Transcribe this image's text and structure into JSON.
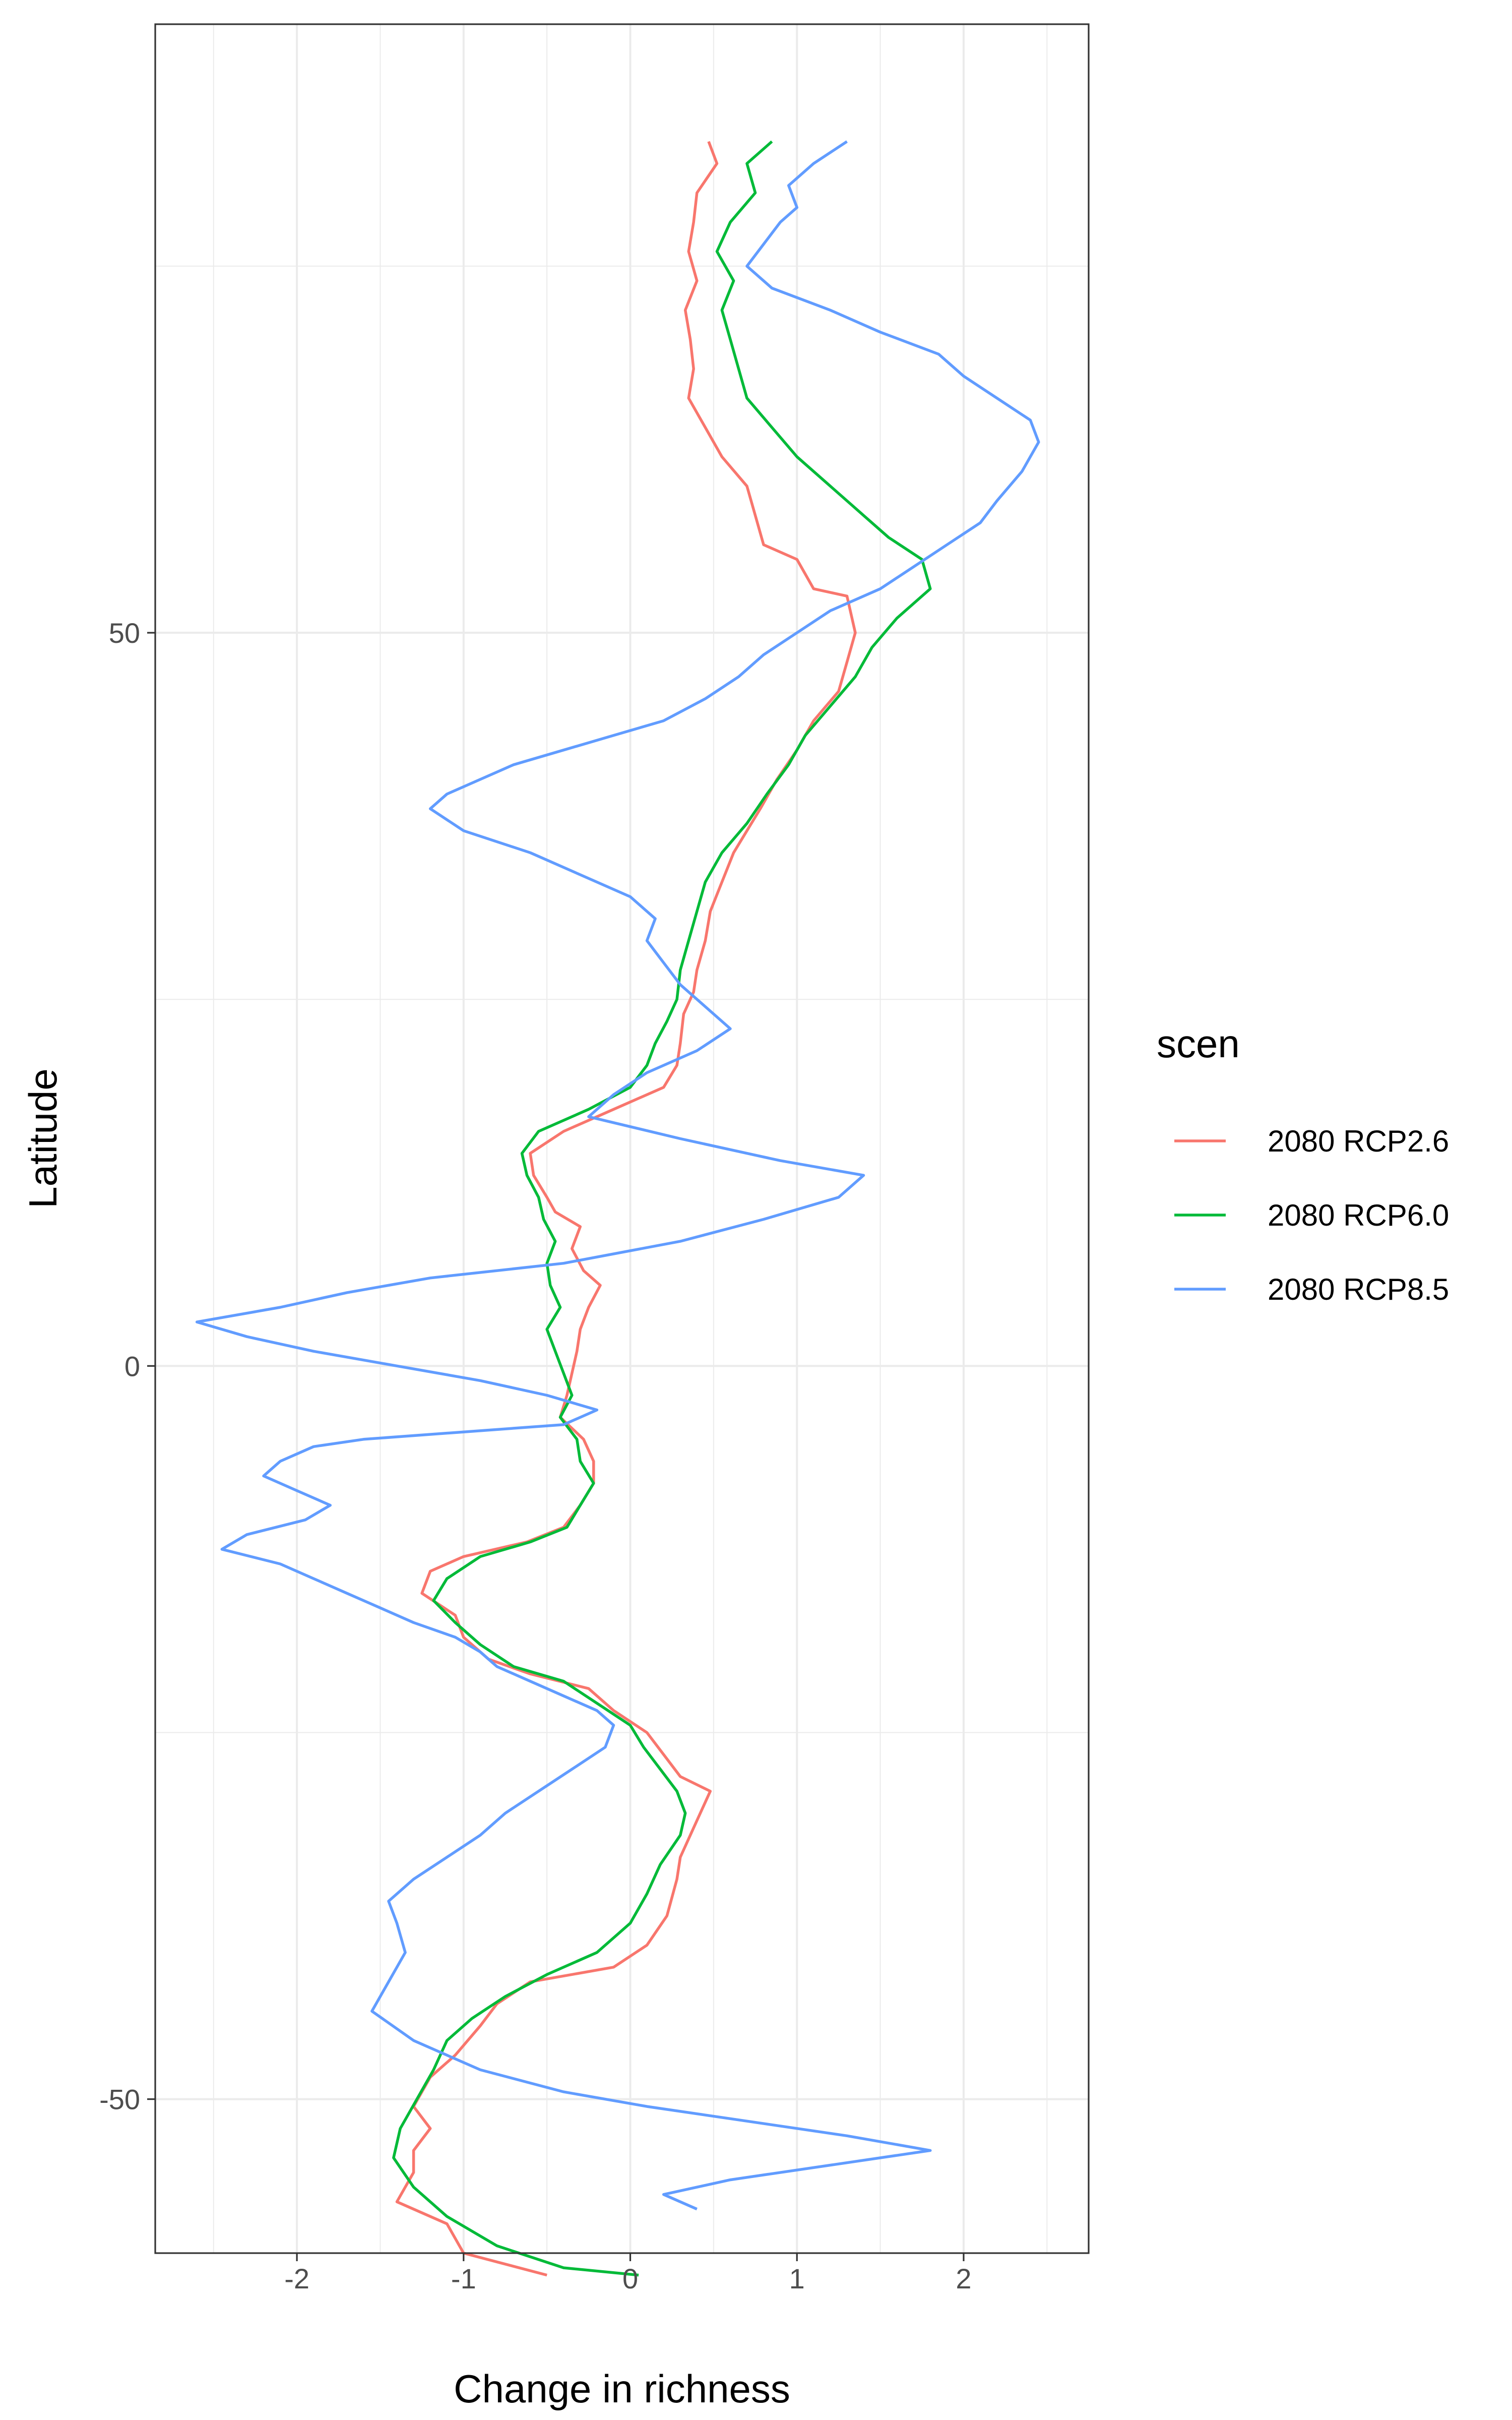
{
  "chart_data": {
    "type": "line",
    "title": "",
    "xlabel": "Change in richness",
    "ylabel": "Latitude",
    "xlim": [
      -2.85,
      2.75
    ],
    "ylim": [
      -60.5,
      91.5
    ],
    "x_ticks": [
      -2,
      -1,
      0,
      1,
      2
    ],
    "x_tick_labels": [
      "-2",
      "-1",
      "0",
      "1",
      "2"
    ],
    "y_ticks": [
      -50,
      0,
      50
    ],
    "y_tick_labels": [
      "-50",
      "0",
      "50"
    ],
    "grid": true,
    "legend": {
      "title": "scen",
      "position": "right"
    },
    "series": [
      {
        "name": "2080 RCP2.6",
        "color": "#F8766D",
        "points": [
          [
            0.47,
            83.5
          ],
          [
            0.52,
            82.0
          ],
          [
            0.4,
            80.0
          ],
          [
            0.38,
            78.0
          ],
          [
            0.35,
            76.0
          ],
          [
            0.4,
            74.0
          ],
          [
            0.33,
            72.0
          ],
          [
            0.36,
            70.0
          ],
          [
            0.38,
            68.0
          ],
          [
            0.35,
            66.0
          ],
          [
            0.45,
            64.0
          ],
          [
            0.55,
            62.0
          ],
          [
            0.7,
            60.0
          ],
          [
            0.75,
            58.0
          ],
          [
            0.8,
            56.0
          ],
          [
            1.0,
            55.0
          ],
          [
            1.1,
            53.0
          ],
          [
            1.3,
            52.5
          ],
          [
            1.35,
            50.0
          ],
          [
            1.3,
            48.0
          ],
          [
            1.25,
            46.0
          ],
          [
            1.1,
            44.0
          ],
          [
            1.0,
            42.0
          ],
          [
            0.88,
            40.0
          ],
          [
            0.78,
            38.0
          ],
          [
            0.62,
            35.0
          ],
          [
            0.55,
            33.0
          ],
          [
            0.48,
            31.0
          ],
          [
            0.45,
            29.0
          ],
          [
            0.4,
            27.0
          ],
          [
            0.38,
            25.5
          ],
          [
            0.32,
            24.0
          ],
          [
            0.3,
            22.0
          ],
          [
            0.28,
            20.5
          ],
          [
            0.2,
            19.0
          ],
          [
            -0.1,
            17.5
          ],
          [
            -0.4,
            16.0
          ],
          [
            -0.6,
            14.5
          ],
          [
            -0.58,
            13.0
          ],
          [
            -0.5,
            11.5
          ],
          [
            -0.45,
            10.5
          ],
          [
            -0.3,
            9.5
          ],
          [
            -0.35,
            8.0
          ],
          [
            -0.28,
            6.5
          ],
          [
            -0.18,
            5.5
          ],
          [
            -0.25,
            4.0
          ],
          [
            -0.3,
            2.5
          ],
          [
            -0.32,
            1.0
          ],
          [
            -0.35,
            -0.5
          ],
          [
            -0.38,
            -2.0
          ],
          [
            -0.42,
            -3.5
          ],
          [
            -0.28,
            -5.0
          ],
          [
            -0.22,
            -6.5
          ],
          [
            -0.22,
            -8.0
          ],
          [
            -0.3,
            -9.5
          ],
          [
            -0.4,
            -11.0
          ],
          [
            -0.62,
            -12.0
          ],
          [
            -1.0,
            -13.0
          ],
          [
            -1.2,
            -14.0
          ],
          [
            -1.25,
            -15.5
          ],
          [
            -1.05,
            -17.0
          ],
          [
            -1.0,
            -18.5
          ],
          [
            -0.85,
            -20.0
          ],
          [
            -0.6,
            -21.0
          ],
          [
            -0.25,
            -22.0
          ],
          [
            -0.1,
            -23.5
          ],
          [
            0.1,
            -25.0
          ],
          [
            0.2,
            -26.5
          ],
          [
            0.3,
            -28.0
          ],
          [
            0.48,
            -29.0
          ],
          [
            0.4,
            -31.0
          ],
          [
            0.3,
            -33.5
          ],
          [
            0.28,
            -35.0
          ],
          [
            0.22,
            -37.5
          ],
          [
            0.1,
            -39.5
          ],
          [
            -0.1,
            -41.0
          ],
          [
            -0.6,
            -42.0
          ],
          [
            -0.8,
            -43.5
          ],
          [
            -0.9,
            -45.0
          ],
          [
            -1.05,
            -47.0
          ],
          [
            -1.2,
            -48.5
          ],
          [
            -1.3,
            -50.5
          ],
          [
            -1.2,
            -52.0
          ],
          [
            -1.3,
            -53.5
          ],
          [
            -1.3,
            -55.0
          ],
          [
            -1.4,
            -57.0
          ],
          [
            -1.1,
            -58.5
          ],
          [
            -1.0,
            -60.5
          ],
          [
            -0.5,
            -62.0
          ]
        ]
      },
      {
        "name": "2080 RCP6.0",
        "color": "#00BA38",
        "points": [
          [
            0.85,
            83.5
          ],
          [
            0.7,
            82.0
          ],
          [
            0.75,
            80.0
          ],
          [
            0.6,
            78.0
          ],
          [
            0.52,
            76.0
          ],
          [
            0.62,
            74.0
          ],
          [
            0.55,
            72.0
          ],
          [
            0.6,
            70.0
          ],
          [
            0.65,
            68.0
          ],
          [
            0.7,
            66.0
          ],
          [
            0.85,
            64.0
          ],
          [
            1.0,
            62.0
          ],
          [
            1.2,
            60.0
          ],
          [
            1.4,
            58.0
          ],
          [
            1.55,
            56.5
          ],
          [
            1.75,
            55.0
          ],
          [
            1.8,
            53.0
          ],
          [
            1.6,
            51.0
          ],
          [
            1.45,
            49.0
          ],
          [
            1.35,
            47.0
          ],
          [
            1.2,
            45.0
          ],
          [
            1.05,
            43.0
          ],
          [
            0.95,
            41.0
          ],
          [
            0.82,
            39.0
          ],
          [
            0.7,
            37.0
          ],
          [
            0.55,
            35.0
          ],
          [
            0.45,
            33.0
          ],
          [
            0.4,
            31.0
          ],
          [
            0.35,
            29.0
          ],
          [
            0.3,
            27.0
          ],
          [
            0.28,
            25.0
          ],
          [
            0.22,
            23.5
          ],
          [
            0.15,
            22.0
          ],
          [
            0.1,
            20.5
          ],
          [
            0.0,
            19.0
          ],
          [
            -0.25,
            17.5
          ],
          [
            -0.55,
            16.0
          ],
          [
            -0.65,
            14.5
          ],
          [
            -0.62,
            13.0
          ],
          [
            -0.55,
            11.5
          ],
          [
            -0.52,
            10.0
          ],
          [
            -0.45,
            8.5
          ],
          [
            -0.5,
            7.0
          ],
          [
            -0.48,
            5.5
          ],
          [
            -0.42,
            4.0
          ],
          [
            -0.5,
            2.5
          ],
          [
            -0.45,
            1.0
          ],
          [
            -0.4,
            -0.5
          ],
          [
            -0.35,
            -2.0
          ],
          [
            -0.42,
            -3.5
          ],
          [
            -0.32,
            -5.0
          ],
          [
            -0.3,
            -6.5
          ],
          [
            -0.22,
            -8.0
          ],
          [
            -0.3,
            -9.5
          ],
          [
            -0.38,
            -11.0
          ],
          [
            -0.6,
            -12.0
          ],
          [
            -0.9,
            -13.0
          ],
          [
            -1.1,
            -14.5
          ],
          [
            -1.18,
            -16.0
          ],
          [
            -1.05,
            -17.5
          ],
          [
            -0.9,
            -19.0
          ],
          [
            -0.7,
            -20.5
          ],
          [
            -0.4,
            -21.5
          ],
          [
            -0.2,
            -23.0
          ],
          [
            0.0,
            -24.5
          ],
          [
            0.08,
            -26.0
          ],
          [
            0.18,
            -27.5
          ],
          [
            0.28,
            -29.0
          ],
          [
            0.33,
            -30.5
          ],
          [
            0.3,
            -32.0
          ],
          [
            0.18,
            -34.0
          ],
          [
            0.1,
            -36.0
          ],
          [
            0.0,
            -38.0
          ],
          [
            -0.2,
            -40.0
          ],
          [
            -0.5,
            -41.5
          ],
          [
            -0.75,
            -43.0
          ],
          [
            -0.95,
            -44.5
          ],
          [
            -1.1,
            -46.0
          ],
          [
            -1.18,
            -48.0
          ],
          [
            -1.28,
            -50.0
          ],
          [
            -1.38,
            -52.0
          ],
          [
            -1.42,
            -54.0
          ],
          [
            -1.3,
            -56.0
          ],
          [
            -1.1,
            -58.0
          ],
          [
            -0.8,
            -60.0
          ],
          [
            -0.4,
            -61.5
          ],
          [
            0.05,
            -62.0
          ]
        ]
      },
      {
        "name": "2080 RCP8.5",
        "color": "#619CFF",
        "points": [
          [
            1.3,
            83.5
          ],
          [
            1.1,
            82.0
          ],
          [
            0.95,
            80.5
          ],
          [
            1.0,
            79.0
          ],
          [
            0.9,
            78.0
          ],
          [
            0.8,
            76.5
          ],
          [
            0.7,
            75.0
          ],
          [
            0.85,
            73.5
          ],
          [
            1.2,
            72.0
          ],
          [
            1.5,
            70.5
          ],
          [
            1.85,
            69.0
          ],
          [
            2.0,
            67.5
          ],
          [
            2.2,
            66.0
          ],
          [
            2.4,
            64.5
          ],
          [
            2.45,
            63.0
          ],
          [
            2.35,
            61.0
          ],
          [
            2.2,
            59.0
          ],
          [
            2.1,
            57.5
          ],
          [
            1.9,
            56.0
          ],
          [
            1.7,
            54.5
          ],
          [
            1.5,
            53.0
          ],
          [
            1.2,
            51.5
          ],
          [
            1.0,
            50.0
          ],
          [
            0.8,
            48.5
          ],
          [
            0.65,
            47.0
          ],
          [
            0.45,
            45.5
          ],
          [
            0.2,
            44.0
          ],
          [
            -0.1,
            43.0
          ],
          [
            -0.4,
            42.0
          ],
          [
            -0.7,
            41.0
          ],
          [
            -0.9,
            40.0
          ],
          [
            -1.1,
            39.0
          ],
          [
            -1.2,
            38.0
          ],
          [
            -1.0,
            36.5
          ],
          [
            -0.6,
            35.0
          ],
          [
            -0.3,
            33.5
          ],
          [
            0.0,
            32.0
          ],
          [
            0.15,
            30.5
          ],
          [
            0.1,
            29.0
          ],
          [
            0.2,
            27.5
          ],
          [
            0.3,
            26.0
          ],
          [
            0.45,
            24.5
          ],
          [
            0.6,
            23.0
          ],
          [
            0.4,
            21.5
          ],
          [
            0.1,
            20.0
          ],
          [
            -0.1,
            18.5
          ],
          [
            -0.25,
            17.0
          ],
          [
            0.3,
            15.5
          ],
          [
            0.9,
            14.0
          ],
          [
            1.4,
            13.0
          ],
          [
            1.25,
            11.5
          ],
          [
            0.8,
            10.0
          ],
          [
            0.3,
            8.5
          ],
          [
            -0.4,
            7.0
          ],
          [
            -1.2,
            6.0
          ],
          [
            -1.7,
            5.0
          ],
          [
            -2.1,
            4.0
          ],
          [
            -2.6,
            3.0
          ],
          [
            -2.3,
            2.0
          ],
          [
            -1.9,
            1.0
          ],
          [
            -1.4,
            0.0
          ],
          [
            -0.9,
            -1.0
          ],
          [
            -0.5,
            -2.0
          ],
          [
            -0.2,
            -3.0
          ],
          [
            -0.4,
            -4.0
          ],
          [
            -1.0,
            -4.5
          ],
          [
            -1.6,
            -5.0
          ],
          [
            -1.9,
            -5.5
          ],
          [
            -2.1,
            -6.5
          ],
          [
            -2.2,
            -7.5
          ],
          [
            -2.0,
            -8.5
          ],
          [
            -1.8,
            -9.5
          ],
          [
            -1.95,
            -10.5
          ],
          [
            -2.3,
            -11.5
          ],
          [
            -2.45,
            -12.5
          ],
          [
            -2.1,
            -13.5
          ],
          [
            -1.9,
            -14.5
          ],
          [
            -1.7,
            -15.5
          ],
          [
            -1.5,
            -16.5
          ],
          [
            -1.3,
            -17.5
          ],
          [
            -1.05,
            -18.5
          ],
          [
            -0.9,
            -19.5
          ],
          [
            -0.8,
            -20.5
          ],
          [
            -0.6,
            -21.5
          ],
          [
            -0.4,
            -22.5
          ],
          [
            -0.2,
            -23.5
          ],
          [
            -0.1,
            -24.5
          ],
          [
            -0.15,
            -26.0
          ],
          [
            -0.35,
            -27.5
          ],
          [
            -0.55,
            -29.0
          ],
          [
            -0.75,
            -30.5
          ],
          [
            -0.9,
            -32.0
          ],
          [
            -1.1,
            -33.5
          ],
          [
            -1.3,
            -35.0
          ],
          [
            -1.45,
            -36.5
          ],
          [
            -1.4,
            -38.0
          ],
          [
            -1.35,
            -40.0
          ],
          [
            -1.45,
            -42.0
          ],
          [
            -1.55,
            -44.0
          ],
          [
            -1.3,
            -46.0
          ],
          [
            -0.9,
            -48.0
          ],
          [
            -0.4,
            -49.5
          ],
          [
            0.1,
            -50.5
          ],
          [
            0.7,
            -51.5
          ],
          [
            1.3,
            -52.5
          ],
          [
            1.8,
            -53.5
          ],
          [
            1.2,
            -54.5
          ],
          [
            0.6,
            -55.5
          ],
          [
            0.2,
            -56.5
          ],
          [
            0.4,
            -57.5
          ]
        ]
      }
    ]
  }
}
